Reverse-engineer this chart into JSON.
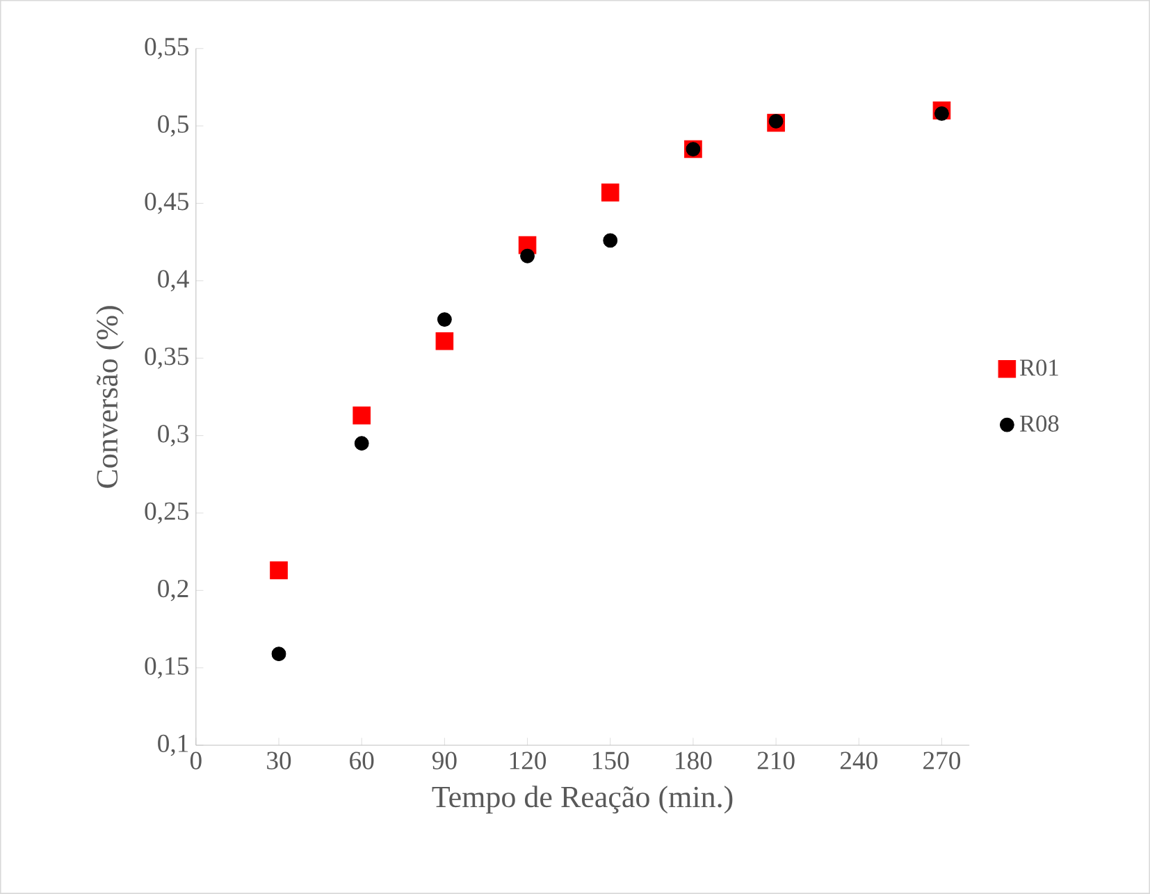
{
  "chart_data": {
    "type": "scatter",
    "xlabel": "Tempo de Reação (min.)",
    "ylabel": "Conversão (%)",
    "x": [
      30,
      60,
      90,
      120,
      150,
      180,
      210,
      270
    ],
    "series": [
      {
        "name": "R01",
        "color": "#ff0000",
        "marker": "square",
        "values": [
          0.213,
          0.313,
          0.361,
          0.423,
          0.457,
          0.485,
          0.502,
          0.51
        ]
      },
      {
        "name": "R08",
        "color": "#000000",
        "marker": "circle",
        "values": [
          0.159,
          0.295,
          0.375,
          0.416,
          0.426,
          0.485,
          0.503,
          0.508
        ]
      }
    ],
    "xlim": [
      0,
      280
    ],
    "xticks": [
      0,
      30,
      60,
      90,
      120,
      150,
      180,
      210,
      240,
      270
    ],
    "ylim": [
      0.1,
      0.55
    ],
    "yticks": [
      {
        "value": 0.1,
        "label": "0,1"
      },
      {
        "value": 0.15,
        "label": "0,15"
      },
      {
        "value": 0.2,
        "label": "0,2"
      },
      {
        "value": 0.25,
        "label": "0,25"
      },
      {
        "value": 0.3,
        "label": "0,3"
      },
      {
        "value": 0.35,
        "label": "0,35"
      },
      {
        "value": 0.4,
        "label": "0,4"
      },
      {
        "value": 0.45,
        "label": "0,45"
      },
      {
        "value": 0.5,
        "label": "0,5"
      },
      {
        "value": 0.55,
        "label": "0,55"
      }
    ],
    "grid": false,
    "legend": "right"
  }
}
